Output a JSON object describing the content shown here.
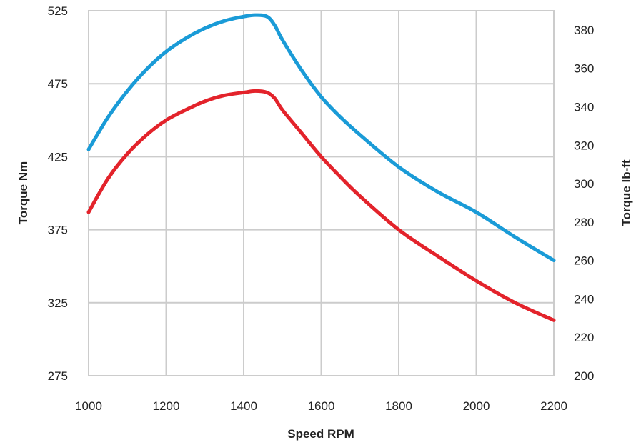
{
  "chart_data": {
    "type": "line",
    "title": "",
    "xlabel": "Speed RPM",
    "ylabel": "Torque Nm",
    "y2label": "Torque lb-ft",
    "xlim": [
      1000,
      2200
    ],
    "ylim": [
      275,
      525
    ],
    "y2lim": [
      200,
      390
    ],
    "x_ticks": [
      "1000",
      "1200",
      "1400",
      "1600",
      "1800",
      "2000",
      "2200"
    ],
    "y_ticks": [
      "275",
      "325",
      "375",
      "425",
      "475",
      "525"
    ],
    "y2_ticks": [
      "200",
      "220",
      "240",
      "260",
      "280",
      "300",
      "320",
      "340",
      "360",
      "380"
    ],
    "grid": true,
    "legend": "none",
    "series": [
      {
        "color": "#1a9bd7",
        "x": [
          1000,
          1050,
          1100,
          1150,
          1200,
          1250,
          1300,
          1350,
          1400,
          1430,
          1460,
          1480,
          1500,
          1550,
          1600,
          1650,
          1700,
          1800,
          1900,
          2000,
          2100,
          2200
        ],
        "y": [
          430,
          452,
          470,
          485,
          497,
          506,
          513,
          518,
          521,
          522,
          521,
          515,
          505,
          484,
          466,
          452,
          440,
          418,
          401,
          387,
          370,
          354
        ]
      },
      {
        "color": "#e3232b",
        "x": [
          1000,
          1050,
          1100,
          1150,
          1200,
          1250,
          1300,
          1350,
          1400,
          1430,
          1460,
          1480,
          1500,
          1550,
          1600,
          1650,
          1700,
          1800,
          1900,
          2000,
          2100,
          2200
        ],
        "y": [
          387,
          410,
          427,
          440,
          450,
          457,
          463,
          467,
          469,
          470,
          469,
          465,
          457,
          441,
          425,
          411,
          398,
          375,
          357,
          340,
          325,
          313
        ]
      }
    ]
  }
}
